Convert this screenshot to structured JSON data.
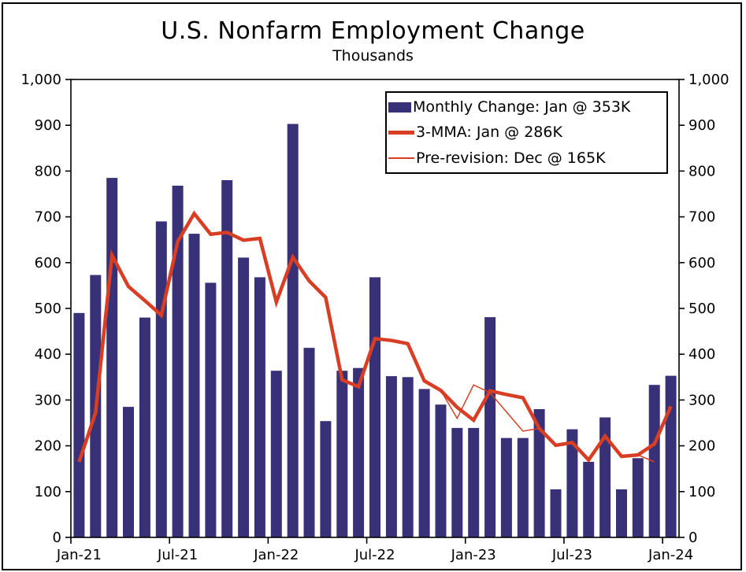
{
  "title": "U.S. Nonfarm Employment Change",
  "subtitle": "Thousands",
  "legend": {
    "items": [
      {
        "swatch": "bar-swatch",
        "label": "Monthly Change: Jan @ 353K"
      },
      {
        "swatch": "thick-line-swatch",
        "label": "3-MMA: Jan @ 286K"
      },
      {
        "swatch": "thin-line-swatch",
        "label": "Pre-revision: Dec @ 165K"
      }
    ]
  },
  "colors": {
    "bar": "#393177",
    "line": "#D83E24",
    "axis": "#000000",
    "background": "#FFFFFF"
  },
  "chart_data": {
    "type": "bar",
    "title": "U.S. Nonfarm Employment Change",
    "subtitle": "Thousands",
    "ylabel": "Thousands",
    "ylim": [
      0,
      1000
    ],
    "y_tick_step": 100,
    "y_tick_labels": [
      "0",
      "100",
      "200",
      "300",
      "400",
      "500",
      "600",
      "700",
      "800",
      "900",
      "1,000"
    ],
    "y_axis_sides": [
      "left",
      "right"
    ],
    "grid": false,
    "legend_position": "top-right",
    "ticks_between_categories": true,
    "x_tick_every": 6,
    "x_tick_labels": [
      "Jan-21",
      "Jul-21",
      "Jan-22",
      "Jul-22",
      "Jan-23",
      "Jul-23",
      "Jan-24"
    ],
    "categories": [
      "Jan-21",
      "Feb-21",
      "Mar-21",
      "Apr-21",
      "May-21",
      "Jun-21",
      "Jul-21",
      "Aug-21",
      "Sep-21",
      "Oct-21",
      "Nov-21",
      "Dec-21",
      "Jan-22",
      "Feb-22",
      "Mar-22",
      "Apr-22",
      "May-22",
      "Jun-22",
      "Jul-22",
      "Aug-22",
      "Sep-22",
      "Oct-22",
      "Nov-22",
      "Dec-22",
      "Jan-23",
      "Feb-23",
      "Mar-23",
      "Apr-23",
      "May-23",
      "Jun-23",
      "Jul-23",
      "Aug-23",
      "Sep-23",
      "Oct-23",
      "Nov-23",
      "Dec-23",
      "Jan-24"
    ],
    "series": [
      {
        "name": "Monthly Change",
        "type": "bar",
        "values": [
          490,
          573,
          785,
          285,
          480,
          690,
          768,
          663,
          556,
          780,
          611,
          568,
          364,
          903,
          414,
          254,
          364,
          370,
          568,
          352,
          350,
          324,
          290,
          239,
          239,
          481,
          217,
          217,
          280,
          105,
          236,
          165,
          262,
          105,
          173,
          333,
          353
        ]
      },
      {
        "name": "3-MMA",
        "type": "line",
        "stroke_width": 4.5,
        "values": [
          165,
          272,
          616,
          548,
          517,
          485,
          646,
          707,
          662,
          666,
          649,
          653,
          514,
          612,
          560,
          524,
          344,
          329,
          434,
          430,
          423,
          342,
          321,
          284,
          256,
          320,
          312,
          305,
          238,
          201,
          207,
          169,
          221,
          177,
          180,
          204,
          286
        ]
      },
      {
        "name": "Pre-revision",
        "type": "line",
        "stroke_width": 1.5,
        "values": [
          null,
          null,
          null,
          null,
          null,
          null,
          null,
          null,
          null,
          null,
          null,
          null,
          null,
          null,
          null,
          null,
          null,
          null,
          null,
          null,
          null,
          null,
          321,
          260,
          333,
          316,
          274,
          232,
          238,
          null,
          null,
          null,
          null,
          null,
          180,
          165,
          null
        ]
      }
    ]
  }
}
